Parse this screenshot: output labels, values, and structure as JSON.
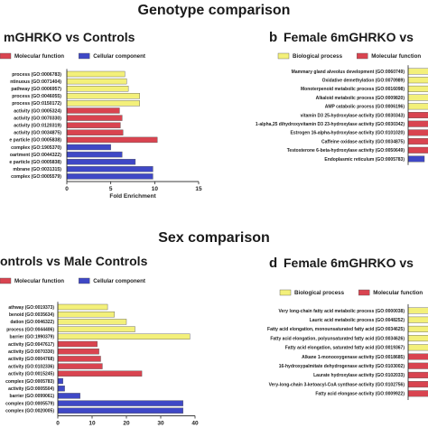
{
  "figure": {
    "section1_title": "Genotype comparison",
    "section2_title": "Sex comparison"
  },
  "colors": {
    "bio": "#f3f07a",
    "mol": "#d94450",
    "cell": "#3f48c6",
    "edge": "#555555"
  },
  "chart_data": [
    {
      "type": "bar",
      "panel_letter": "",
      "title": "mGHRKO vs Controls",
      "legend": [
        "Molecular function",
        "Cellular component"
      ],
      "legend_kinds": [
        "mol",
        "cell"
      ],
      "xlabel": "Fold Enrichment",
      "xlim": [
        0,
        15
      ],
      "xticks": [
        0,
        5,
        10,
        15
      ],
      "categories": [
        "process (GO:0006783)",
        "ntinuous (GO:0071404)",
        "pathway (GO:0006957)",
        "process (GO:0046055)",
        "process (GO:0150172)",
        "activity (GO:0005324)",
        "activity (GO:0070330)",
        "activity (GO:0120319)",
        "activity (GO:0034875)",
        "e particle (GO:0005838)",
        "complex (GO:1905370)",
        "oartment (GO:0044322)",
        "e particle (GO:0005838)",
        "mbrane (GO:0031315)",
        "complex (GO:0005579)"
      ],
      "kinds": [
        "bio",
        "bio",
        "bio",
        "bio",
        "bio",
        "mol",
        "mol",
        "mol",
        "mol",
        "mol",
        "cell",
        "cell",
        "cell",
        "cell",
        "cell"
      ],
      "values": [
        6.6,
        6.8,
        7.0,
        8.3,
        8.3,
        6.0,
        6.3,
        6.1,
        6.4,
        10.3,
        5.0,
        6.3,
        7.8,
        9.8,
        9.8
      ]
    },
    {
      "type": "bar",
      "panel_letter": "b",
      "title": "Female 6mGHRKO vs",
      "legend": [
        "Biological process",
        "Molecular function"
      ],
      "legend_kinds": [
        "bio",
        "mol"
      ],
      "categories": [
        "Mammary gland alveolus development (GO:0060749)",
        "Oxidative demethylation (GO:0070989)",
        "Monoterpenoid metabolic process (GO:0016098)",
        "Alkaloid metabolic process (GO:0009820)",
        "AMP catabolic process (GO:0006196)",
        "vitamin D3 25-hydroxylase activity (GO:0030343)",
        "1-alpha,25 dihydroxyvitamin D3 23-hydroxylase activity (GO:0030342)",
        "Estrogen 16-alpha-hydroxylase activity (GO:0101020)",
        "Caffeine oxidase activity (GO:0034875)",
        "Testosterone 6-beta-hydroxylase activity (GO:0050649)",
        "Endoplasmic reticulum (GO:0005783)"
      ],
      "kinds": [
        "bio",
        "bio",
        "bio",
        "bio",
        "bio",
        "mol",
        "mol",
        "mol",
        "mol",
        "mol",
        "cell"
      ],
      "values": [
        1,
        1,
        1,
        1,
        1,
        1,
        1,
        1,
        1,
        1,
        0.3
      ]
    },
    {
      "type": "bar",
      "panel_letter": "",
      "title": "ontrols vs Male Controls",
      "legend": [
        "Molecular function",
        "Cellular component"
      ],
      "legend_kinds": [
        "mol",
        "cell"
      ],
      "xlabel": "Fold Enrichment",
      "xlim": [
        0,
        40
      ],
      "xticks": [
        0,
        10,
        20,
        30,
        40
      ],
      "categories": [
        "athway (GO:0019373)",
        "benoid (GO:0035634)",
        "dation (GO:0046322)",
        "process (GO:0044406)",
        "barrier (GO:1990379)",
        "activity (GO:0047617)",
        "activity (GO:0070330)",
        "activity (GO:0004768)",
        "activity (GO:0102336)",
        "activity (GO:0015245)",
        "complex (GO:0005783)",
        "activity (GO:0005504)",
        "barrier (GO:0099061)",
        "complex (GO:0005579)",
        "complex (GO:0020005)"
      ],
      "kinds": [
        "bio",
        "bio",
        "bio",
        "bio",
        "bio",
        "mol",
        "mol",
        "mol",
        "mol",
        "mol",
        "cell",
        "cell",
        "cell",
        "cell",
        "cell"
      ],
      "values": [
        14.5,
        16.5,
        20.0,
        22.5,
        38.5,
        11.5,
        12.0,
        12.5,
        13.0,
        24.5,
        1.5,
        2.0,
        6.5,
        36.5,
        36.5
      ]
    },
    {
      "type": "bar",
      "panel_letter": "d",
      "title": "Female 6mGHRKO vs",
      "legend": [
        "Biological process",
        "Molecular function"
      ],
      "legend_kinds": [
        "bio",
        "mol"
      ],
      "categories": [
        "Very long-chain fatty acid metabolic process (GO:0000038)",
        "Lauric acid metabolic process (GO:0048252)",
        "Fatty acid elongation, monounsaturated fatty acid (GO:0034625)",
        "Fatty acid elongation, polyunsaturated fatty acid (GO:0034626)",
        "Fatty acid elongation, saturated fatty acid (GO:0019367)",
        "Alkane 1-monooxygenase activity (GO:0018685)",
        "16-hydroxypalmitate dehydrogenase activity (GO:0103002)",
        "Laurate hydroxylase activity (GO:0102033)",
        "Very-long-chain 3-ketoacyl-CoA synthase activity (GO:0102756)",
        "Fatty acid elongase activity (GO:0009922)"
      ],
      "kinds": [
        "bio",
        "bio",
        "bio",
        "bio",
        "bio",
        "mol",
        "mol",
        "mol",
        "mol",
        "mol"
      ],
      "values": [
        1,
        1,
        1,
        1,
        1,
        1,
        1,
        1,
        1,
        1
      ]
    }
  ]
}
